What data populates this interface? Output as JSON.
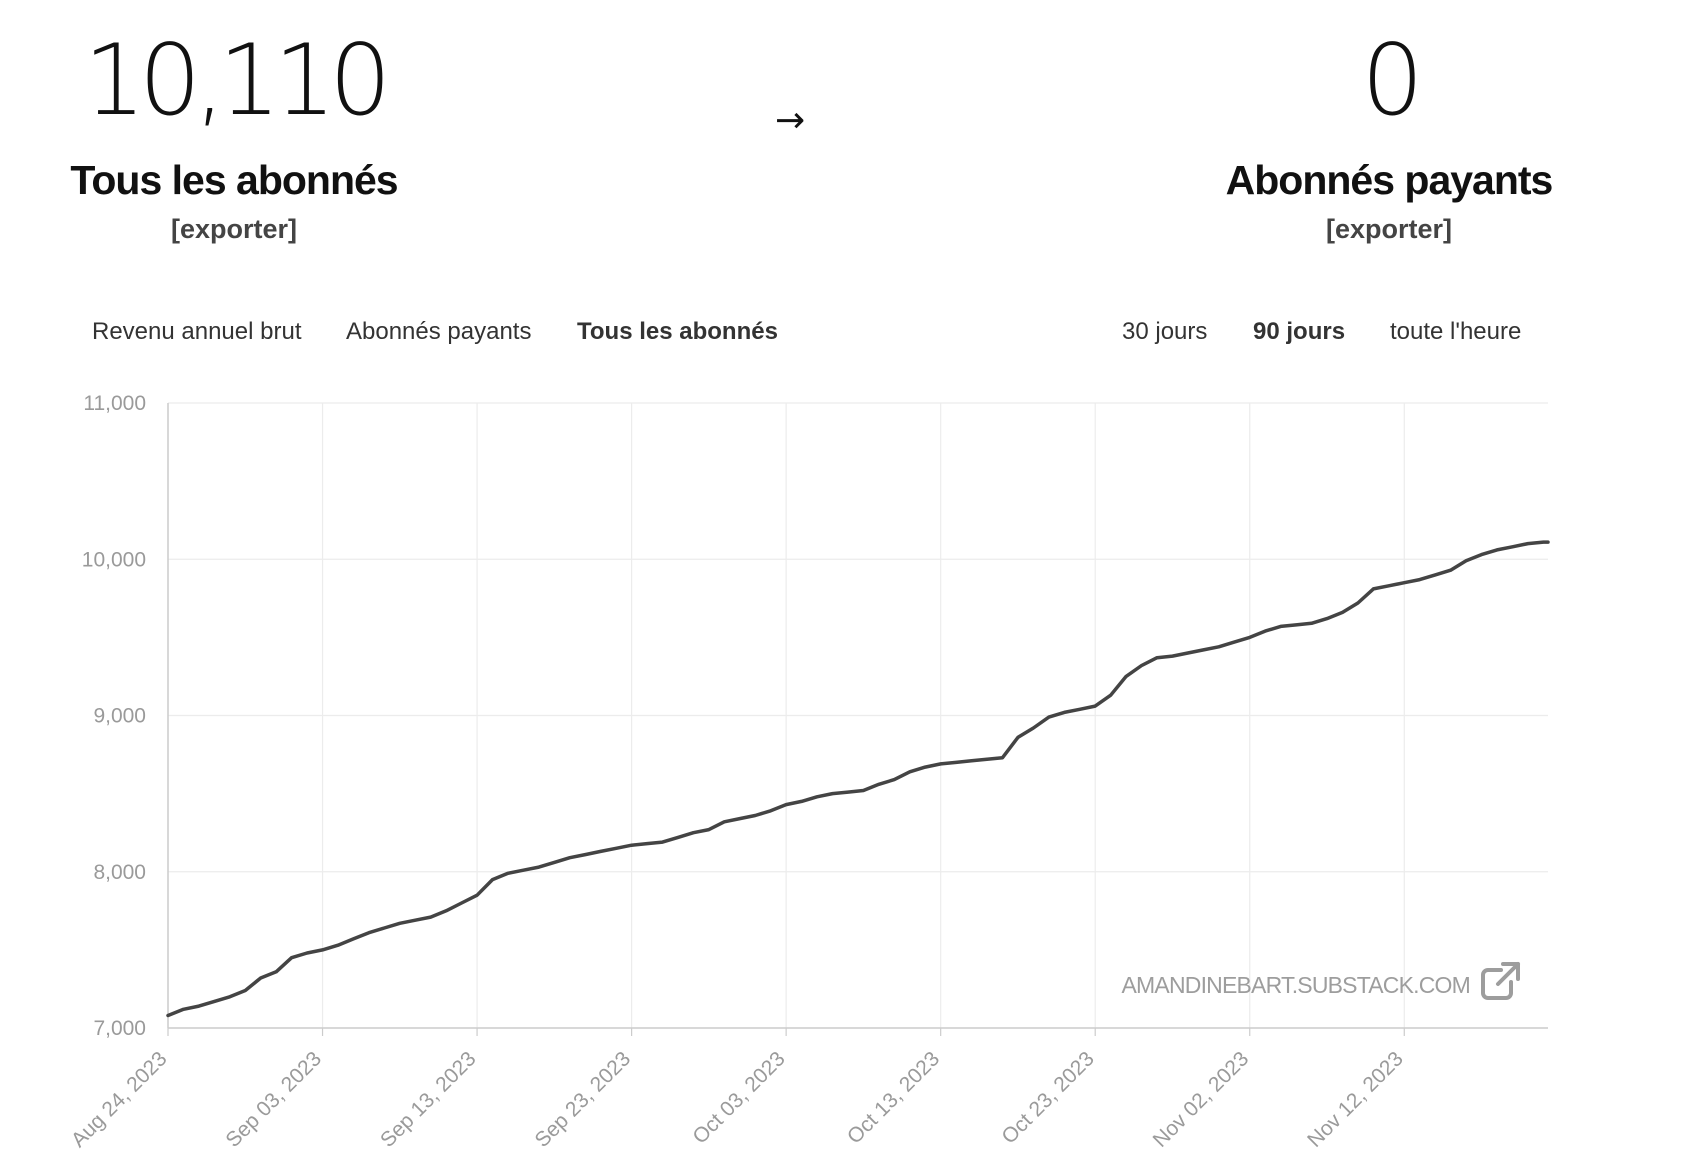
{
  "stats": {
    "all": {
      "value": "10,110",
      "label": "Tous les abonnés",
      "export": "[exporter]"
    },
    "arrow": "→",
    "paid": {
      "value": "0",
      "label": "Abonnés payants",
      "export": "[exporter]"
    }
  },
  "metric_tabs": [
    {
      "label": "Revenu annuel brut",
      "active": false
    },
    {
      "label": "Abonnés payants",
      "active": false
    },
    {
      "label": "Tous les abonnés",
      "active": true
    }
  ],
  "range_tabs": [
    {
      "label": "30 jours",
      "active": false
    },
    {
      "label": "90 jours",
      "active": true
    },
    {
      "label": "toute l'heure",
      "active": false
    }
  ],
  "chart_data": {
    "type": "line",
    "title": "",
    "xlabel": "",
    "ylabel": "",
    "ylim": [
      7000,
      11000
    ],
    "y_ticks": [
      "7,000",
      "8,000",
      "9,000",
      "10,000",
      "11,000"
    ],
    "x_tick_labels": [
      "Aug 24, 2023",
      "Sep 03, 2023",
      "Sep 13, 2023",
      "Sep 23, 2023",
      "Oct 03, 2023",
      "Oct 13, 2023",
      "Oct 23, 2023",
      "Nov 02, 2023",
      "Nov 12, 2023"
    ],
    "grid": true,
    "line_color": "#444444",
    "watermark": "AMANDINEBART.SUBSTACK.COM",
    "watermark_icon": "external-link-icon",
    "series": [
      {
        "x": [
          "2023-08-24",
          "2023-08-25",
          "2023-08-26",
          "2023-08-27",
          "2023-08-28",
          "2023-08-29",
          "2023-08-30",
          "2023-08-31",
          "2023-09-01",
          "2023-09-02",
          "2023-09-03",
          "2023-09-04",
          "2023-09-05",
          "2023-09-06",
          "2023-09-07",
          "2023-09-08",
          "2023-09-09",
          "2023-09-10",
          "2023-09-11",
          "2023-09-12",
          "2023-09-13",
          "2023-09-14",
          "2023-09-15",
          "2023-09-16",
          "2023-09-17",
          "2023-09-18",
          "2023-09-19",
          "2023-09-20",
          "2023-09-21",
          "2023-09-22",
          "2023-09-23",
          "2023-09-24",
          "2023-09-25",
          "2023-09-26",
          "2023-09-27",
          "2023-09-28",
          "2023-09-29",
          "2023-09-30",
          "2023-10-01",
          "2023-10-02",
          "2023-10-03",
          "2023-10-04",
          "2023-10-05",
          "2023-10-06",
          "2023-10-07",
          "2023-10-08",
          "2023-10-09",
          "2023-10-10",
          "2023-10-11",
          "2023-10-12",
          "2023-10-13",
          "2023-10-14",
          "2023-10-15",
          "2023-10-16",
          "2023-10-17",
          "2023-10-18",
          "2023-10-19",
          "2023-10-20",
          "2023-10-21",
          "2023-10-22",
          "2023-10-23",
          "2023-10-24",
          "2023-10-25",
          "2023-10-26",
          "2023-10-27",
          "2023-10-28",
          "2023-10-29",
          "2023-10-30",
          "2023-10-31",
          "2023-11-01",
          "2023-11-02",
          "2023-11-03",
          "2023-11-04",
          "2023-11-05",
          "2023-11-06",
          "2023-11-07",
          "2023-11-08",
          "2023-11-09",
          "2023-11-10",
          "2023-11-11",
          "2023-11-12",
          "2023-11-13",
          "2023-11-14",
          "2023-11-15",
          "2023-11-16",
          "2023-11-17",
          "2023-11-18",
          "2023-11-19",
          "2023-11-20",
          "2023-11-21"
        ],
        "values": [
          7080,
          7120,
          7140,
          7170,
          7200,
          7240,
          7320,
          7360,
          7450,
          7480,
          7500,
          7530,
          7570,
          7610,
          7640,
          7670,
          7690,
          7710,
          7750,
          7800,
          7850,
          7950,
          7990,
          8010,
          8030,
          8060,
          8090,
          8110,
          8130,
          8150,
          8170,
          8180,
          8190,
          8220,
          8250,
          8270,
          8320,
          8340,
          8360,
          8390,
          8430,
          8450,
          8480,
          8500,
          8510,
          8520,
          8560,
          8590,
          8640,
          8670,
          8690,
          8700,
          8710,
          8720,
          8730,
          8860,
          8920,
          8990,
          9020,
          9040,
          9060,
          9130,
          9250,
          9320,
          9370,
          9380,
          9400,
          9420,
          9440,
          9470,
          9500,
          9540,
          9570,
          9580,
          9590,
          9620,
          9660,
          9720,
          9810,
          9830,
          9850,
          9870,
          9900,
          9930,
          9990,
          10030,
          10060,
          10080,
          10100,
          10110
        ]
      }
    ]
  }
}
